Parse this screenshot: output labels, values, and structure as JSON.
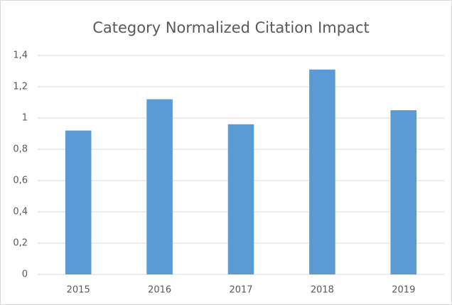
{
  "chart_data": {
    "type": "bar",
    "title": "Category Normalized Citation Impact",
    "categories": [
      "2015",
      "2016",
      "2017",
      "2018",
      "2019"
    ],
    "values": [
      0.92,
      1.12,
      0.96,
      1.31,
      1.05
    ],
    "color": "#5b9bd5",
    "ylim": [
      0,
      1.4
    ],
    "yticks": [
      0,
      {
        "value": 0.2,
        "label": "0,2"
      },
      {
        "value": 0.4,
        "label": "0,4"
      },
      {
        "value": 0.6,
        "label": "0,6"
      },
      {
        "value": 0.8,
        "label": "0,8"
      },
      1,
      {
        "value": 1.2,
        "label": "1,2"
      },
      {
        "value": 1.4,
        "label": "1,4"
      }
    ],
    "grid": true
  }
}
